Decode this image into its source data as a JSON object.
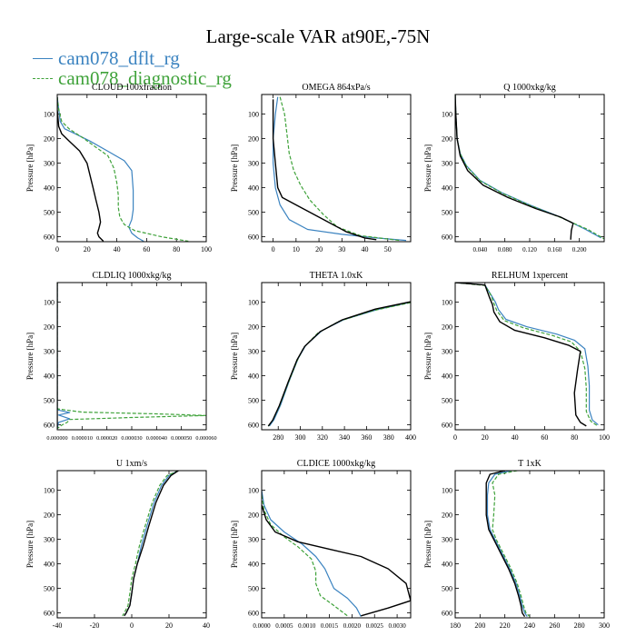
{
  "title": "Large-scale VAR at90E,-75N",
  "colors": {
    "dflt": "#3b83c0",
    "diagnostic": "#3fa23a",
    "black": "#000000"
  },
  "legend": [
    {
      "label": "cam078_dflt_rg",
      "color": "#3b83c0",
      "dash": "solid"
    },
    {
      "label": "cam078_diagnostic_rg",
      "color": "#3fa23a",
      "dash": "dashed"
    }
  ],
  "chart_data": [
    {
      "type": "line",
      "title": "CLOUD  100xfraction",
      "ylabel": "Pressure [hPa]",
      "xlim": [
        0,
        100
      ],
      "ylim": [
        620,
        20
      ],
      "xticks": [
        0,
        20,
        40,
        60,
        80,
        100
      ],
      "xtick_labels": [
        "0",
        "20",
        "40",
        "60",
        "80",
        "100"
      ],
      "yticks": [
        100,
        200,
        300,
        400,
        500,
        600
      ],
      "series": [
        {
          "color": "dflt",
          "dash": "solid",
          "x": [
            0,
            1,
            2,
            5,
            12,
            22,
            35,
            45,
            50,
            51,
            51,
            50,
            48,
            50,
            54,
            58
          ],
          "y": [
            30,
            80,
            130,
            160,
            180,
            210,
            255,
            290,
            330,
            410,
            490,
            530,
            560,
            585,
            605,
            618
          ]
        },
        {
          "color": "diagnostic",
          "dash": "dashed",
          "x": [
            0,
            1,
            3,
            8,
            18,
            26,
            34,
            38,
            40,
            41,
            41,
            42,
            45,
            52,
            70,
            88
          ],
          "y": [
            30,
            80,
            130,
            160,
            200,
            235,
            270,
            320,
            380,
            430,
            480,
            520,
            550,
            575,
            600,
            618
          ]
        },
        {
          "color": "black",
          "dash": "solid",
          "x": [
            0,
            0,
            1,
            3,
            8,
            15,
            20,
            22,
            24,
            26,
            28,
            29,
            28,
            27,
            28,
            31
          ],
          "y": [
            30,
            80,
            150,
            180,
            210,
            250,
            300,
            350,
            400,
            450,
            500,
            540,
            565,
            585,
            600,
            618
          ]
        }
      ]
    },
    {
      "type": "line",
      "title": "OMEGA  864xPa/s",
      "ylabel": "Pressure [hPa]",
      "xlim": [
        -5,
        60
      ],
      "ylim": [
        620,
        20
      ],
      "xticks": [
        0,
        10,
        20,
        30,
        40,
        50
      ],
      "xtick_labels": [
        "0",
        "10",
        "20",
        "30",
        "40",
        "50"
      ],
      "yticks": [
        100,
        200,
        300,
        400,
        500,
        600
      ],
      "series": [
        {
          "color": "dflt",
          "dash": "solid",
          "x": [
            2,
            1,
            0,
            0,
            1,
            3,
            7,
            15,
            30,
            45,
            58
          ],
          "y": [
            30,
            100,
            200,
            300,
            400,
            470,
            530,
            570,
            590,
            605,
            615
          ]
        },
        {
          "color": "diagnostic",
          "dash": "dashed",
          "x": [
            3,
            5,
            6,
            7,
            9,
            12,
            16,
            22,
            28,
            38,
            55
          ],
          "y": [
            30,
            100,
            180,
            260,
            330,
            390,
            450,
            510,
            560,
            595,
            615
          ]
        },
        {
          "color": "black",
          "dash": "solid",
          "x": [
            0,
            0,
            0,
            1,
            2,
            4,
            10,
            20,
            32,
            40,
            45
          ],
          "y": [
            40,
            100,
            200,
            300,
            400,
            440,
            470,
            520,
            580,
            605,
            612
          ]
        }
      ]
    },
    {
      "type": "line",
      "title": "Q  1000xkg/kg",
      "ylabel": "Pressure [hPa]",
      "xlim": [
        0,
        0.24
      ],
      "ylim": [
        620,
        20
      ],
      "xticks": [
        0.04,
        0.08,
        0.12,
        0.16,
        0.2
      ],
      "xtick_labels": [
        "0.040",
        "0.080",
        "0.120",
        "0.160",
        "0.200"
      ],
      "yticks": [
        100,
        200,
        300,
        400,
        500,
        600
      ],
      "series": [
        {
          "color": "dflt",
          "dash": "solid",
          "x": [
            0,
            0.001,
            0.003,
            0.008,
            0.018,
            0.04,
            0.075,
            0.12,
            0.17,
            0.21,
            0.235
          ],
          "y": [
            20,
            100,
            200,
            260,
            310,
            370,
            420,
            470,
            520,
            570,
            605
          ]
        },
        {
          "color": "diagnostic",
          "dash": "dashed",
          "x": [
            0,
            0.001,
            0.003,
            0.008,
            0.018,
            0.04,
            0.075,
            0.12,
            0.17,
            0.215,
            0.24
          ],
          "y": [
            20,
            100,
            200,
            262,
            312,
            372,
            422,
            472,
            522,
            572,
            608
          ]
        },
        {
          "color": "black",
          "dash": "solid",
          "x": [
            0,
            0.001,
            0.003,
            0.008,
            0.02,
            0.045,
            0.085,
            0.13,
            0.17,
            0.19,
            0.187,
            0.186
          ],
          "y": [
            20,
            100,
            200,
            270,
            330,
            390,
            440,
            485,
            520,
            545,
            575,
            612
          ]
        }
      ]
    },
    {
      "type": "line",
      "title": "CLDLIQ  1000xkg/kg",
      "ylabel": "Pressure [hPa]",
      "xlim": [
        0,
        6e-05
      ],
      "ylim": [
        620,
        20
      ],
      "xticks": [
        0,
        1e-05,
        2e-05,
        3e-05,
        4e-05,
        5e-05,
        6e-05
      ],
      "xtick_labels": [
        "0.000000",
        "0.000010",
        "0.000020",
        "0.000030",
        "0.000040",
        "0.000050",
        "0.000060"
      ],
      "yticks": [
        100,
        200,
        300,
        400,
        500,
        600
      ],
      "series": [
        {
          "color": "dflt",
          "dash": "solid",
          "x": [
            0,
            0,
            5e-07,
            5e-06,
            5e-07,
            5e-06,
            5e-07,
            0
          ],
          "y": [
            20,
            530,
            540,
            550,
            560,
            575,
            590,
            615
          ]
        },
        {
          "color": "diagnostic",
          "dash": "dashed",
          "x": [
            0,
            0,
            1e-05,
            4e-05,
            6e-05,
            3e-05,
            5e-06,
            4e-06,
            2e-06,
            0
          ],
          "y": [
            20,
            535,
            548,
            555,
            562,
            570,
            578,
            590,
            600,
            615
          ]
        },
        {
          "color": "black",
          "dash": "solid",
          "x": [
            0,
            0
          ],
          "y": [
            20,
            615
          ]
        }
      ]
    },
    {
      "type": "line",
      "title": "THETA  1.0xK",
      "ylabel": "Pressure [hPa]",
      "xlim": [
        265,
        400
      ],
      "ylim": [
        620,
        20
      ],
      "xticks": [
        280,
        300,
        320,
        340,
        360,
        380,
        400
      ],
      "xtick_labels": [
        "280",
        "300",
        "320",
        "340",
        "360",
        "380",
        "400"
      ],
      "yticks": [
        100,
        200,
        300,
        400,
        500,
        600
      ],
      "series": [
        {
          "color": "dflt",
          "dash": "solid",
          "x": [
            400,
            370,
            340,
            320,
            305,
            298,
            290,
            282,
            276,
            272
          ],
          "y": [
            100,
            130,
            170,
            215,
            275,
            330,
            420,
            520,
            580,
            605
          ]
        },
        {
          "color": "diagnostic",
          "dash": "dashed",
          "x": [
            400,
            365,
            335,
            316,
            303,
            297,
            289,
            281,
            275,
            271
          ],
          "y": [
            102,
            135,
            178,
            225,
            285,
            340,
            430,
            525,
            582,
            606
          ]
        },
        {
          "color": "black",
          "dash": "solid",
          "x": [
            400,
            368,
            338,
            318,
            304,
            297,
            289,
            281,
            275,
            271
          ],
          "y": [
            98,
            128,
            172,
            220,
            280,
            335,
            425,
            522,
            581,
            605
          ]
        }
      ]
    },
    {
      "type": "line",
      "title": "RELHUM  1xpercent",
      "ylabel": "Pressure [hPa]",
      "xlim": [
        0,
        100
      ],
      "ylim": [
        620,
        20
      ],
      "xticks": [
        0,
        20,
        40,
        60,
        80,
        100
      ],
      "xtick_labels": [
        "0",
        "20",
        "40",
        "60",
        "80",
        "100"
      ],
      "yticks": [
        100,
        200,
        300,
        400,
        500,
        600
      ],
      "series": [
        {
          "color": "dflt",
          "dash": "solid",
          "x": [
            0,
            20,
            24,
            27,
            29,
            34,
            48,
            68,
            80,
            87,
            89,
            90,
            90,
            92,
            96
          ],
          "y": [
            20,
            30,
            70,
            100,
            130,
            170,
            200,
            230,
            255,
            290,
            360,
            440,
            540,
            580,
            600
          ]
        },
        {
          "color": "diagnostic",
          "dash": "dashed",
          "x": [
            0,
            20,
            24,
            26,
            28,
            33,
            46,
            65,
            78,
            84,
            87,
            88,
            88,
            91,
            95
          ],
          "y": [
            20,
            32,
            72,
            105,
            135,
            175,
            205,
            235,
            262,
            300,
            370,
            450,
            545,
            585,
            602
          ]
        },
        {
          "color": "black",
          "dash": "solid",
          "x": [
            0,
            20,
            23,
            25,
            26,
            30,
            40,
            60,
            76,
            84,
            82,
            80,
            81,
            84,
            88
          ],
          "y": [
            20,
            30,
            80,
            110,
            140,
            180,
            215,
            245,
            275,
            300,
            380,
            470,
            560,
            590,
            605
          ]
        }
      ]
    },
    {
      "type": "line",
      "title": "U  1xm/s",
      "ylabel": "Pressure [hPa]",
      "xlim": [
        -40,
        40
      ],
      "ylim": [
        620,
        20
      ],
      "xticks": [
        -40,
        -20,
        0,
        20,
        40
      ],
      "xtick_labels": [
        "-40",
        "-20",
        "0",
        "20",
        "40"
      ],
      "yticks": [
        100,
        200,
        300,
        400,
        500,
        600
      ],
      "series": [
        {
          "color": "dflt",
          "dash": "solid",
          "x": [
            25,
            20,
            16,
            12,
            8,
            5,
            3,
            1,
            0,
            -1,
            -3,
            -4
          ],
          "y": [
            20,
            40,
            80,
            150,
            250,
            330,
            400,
            460,
            520,
            570,
            600,
            612
          ]
        },
        {
          "color": "diagnostic",
          "dash": "dashed",
          "x": [
            25,
            19,
            15,
            11,
            7,
            4,
            2,
            0,
            -1,
            -2,
            -4,
            -5
          ],
          "y": [
            20,
            40,
            80,
            150,
            250,
            330,
            400,
            460,
            520,
            570,
            600,
            612
          ]
        },
        {
          "color": "black",
          "dash": "solid",
          "x": [
            25,
            21,
            17,
            13,
            9,
            6,
            3,
            1,
            0,
            -1,
            -3,
            -4
          ],
          "y": [
            20,
            40,
            80,
            150,
            250,
            330,
            400,
            460,
            520,
            570,
            600,
            612
          ]
        }
      ]
    },
    {
      "type": "line",
      "title": "CLDICE  1000xkg/kg",
      "ylabel": "Pressure [hPa]",
      "xlim": [
        0,
        0.0033
      ],
      "ylim": [
        620,
        20
      ],
      "xticks": [
        0,
        0.0005,
        0.001,
        0.0015,
        0.002,
        0.0025,
        0.003
      ],
      "xtick_labels": [
        "0.0000",
        "0.0005",
        "0.0010",
        "0.0015",
        "0.0020",
        "0.0025",
        "0.0030"
      ],
      "yticks": [
        100,
        200,
        300,
        400,
        500,
        600
      ],
      "series": [
        {
          "color": "dflt",
          "dash": "solid",
          "x": [
            0,
            5e-05,
            0.0002,
            0.0005,
            0.0009,
            0.0012,
            0.0014,
            0.0015,
            0.0016,
            0.0019,
            0.0021,
            0.0022
          ],
          "y": [
            100,
            160,
            220,
            270,
            320,
            370,
            420,
            460,
            500,
            540,
            580,
            615
          ]
        },
        {
          "color": "diagnostic",
          "dash": "dashed",
          "x": [
            0,
            5e-05,
            0.0002,
            0.0005,
            0.0008,
            0.0011,
            0.0012,
            0.0012,
            0.0013,
            0.0016,
            0.0019
          ],
          "y": [
            120,
            180,
            240,
            290,
            330,
            380,
            430,
            480,
            530,
            570,
            612
          ]
        },
        {
          "color": "black",
          "dash": "solid",
          "x": [
            0,
            0.0001,
            0.0003,
            0.0008,
            0.0015,
            0.0022,
            0.0028,
            0.0032,
            0.0033,
            0.0028,
            0.0022
          ],
          "y": [
            160,
            220,
            270,
            310,
            340,
            370,
            420,
            480,
            550,
            580,
            612
          ]
        }
      ]
    },
    {
      "type": "line",
      "title": "T  1xK",
      "ylabel": "Pressure [hPa]",
      "xlim": [
        180,
        300
      ],
      "ylim": [
        620,
        20
      ],
      "xticks": [
        180,
        200,
        220,
        240,
        260,
        280,
        300
      ],
      "xtick_labels": [
        "180",
        "200",
        "220",
        "240",
        "260",
        "280",
        "300"
      ],
      "yticks": [
        100,
        200,
        300,
        400,
        500,
        600
      ],
      "series": [
        {
          "color": "dflt",
          "dash": "solid",
          "x": [
            225,
            212,
            207,
            206,
            206,
            208,
            212,
            218,
            224,
            229,
            232,
            234,
            236,
            238
          ],
          "y": [
            20,
            35,
            70,
            120,
            200,
            260,
            300,
            360,
            420,
            480,
            530,
            570,
            600,
            615
          ]
        },
        {
          "color": "diagnostic",
          "dash": "dashed",
          "x": [
            230,
            215,
            210,
            212,
            211,
            210,
            213,
            219,
            225,
            230,
            233,
            235,
            237,
            240
          ],
          "y": [
            20,
            35,
            70,
            120,
            200,
            260,
            300,
            360,
            420,
            480,
            530,
            570,
            600,
            615
          ]
        },
        {
          "color": "black",
          "dash": "solid",
          "x": [
            220,
            208,
            205,
            205,
            205,
            207,
            211,
            217,
            223,
            228,
            231,
            233,
            234,
            236
          ],
          "y": [
            20,
            35,
            70,
            120,
            200,
            260,
            300,
            360,
            420,
            480,
            530,
            570,
            600,
            615
          ]
        }
      ]
    }
  ]
}
